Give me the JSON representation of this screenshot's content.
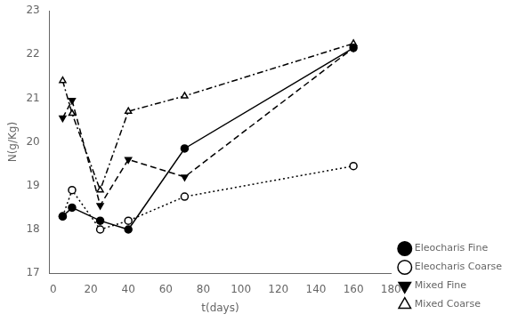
{
  "chart_data": {
    "type": "line",
    "xlabel": "t(days)",
    "ylabel": "N(g/Kg)",
    "xlim": [
      -2,
      180
    ],
    "ylim": [
      17,
      23
    ],
    "xticks": [
      0,
      20,
      40,
      60,
      80,
      100,
      120,
      140,
      160,
      180
    ],
    "yticks": [
      17,
      18,
      19,
      20,
      21,
      22,
      23
    ],
    "grid": false,
    "legend": "lower right",
    "series": [
      {
        "name": "Eleocharis Fine",
        "color": "black",
        "marker": "circle",
        "line_style": "solid",
        "x": [
          5,
          10,
          25,
          40,
          70,
          160
        ],
        "values": [
          18.3,
          18.5,
          18.2,
          18.0,
          19.85,
          22.15
        ]
      },
      {
        "name": "Eleocharis Coarse",
        "color": "black",
        "marker": "circle_open",
        "line_style": "dotted",
        "x": [
          5,
          10,
          25,
          40,
          70,
          160
        ],
        "values": [
          18.3,
          18.9,
          18.0,
          18.2,
          18.75,
          19.45
        ]
      },
      {
        "name": "Mixed Fine",
        "color": "black",
        "marker": "triangle_down",
        "line_style": "dashed",
        "x": [
          5,
          10,
          25,
          40,
          70,
          160
        ],
        "values": [
          20.55,
          20.95,
          18.55,
          19.6,
          19.2,
          22.15
        ]
      },
      {
        "name": "Mixed Coarse",
        "color": "black",
        "marker": "triangle_up_open",
        "line_style": "dashdot",
        "x": [
          5,
          10,
          25,
          40,
          70,
          160
        ],
        "values": [
          21.4,
          20.65,
          18.9,
          20.7,
          21.05,
          22.25
        ]
      }
    ]
  }
}
